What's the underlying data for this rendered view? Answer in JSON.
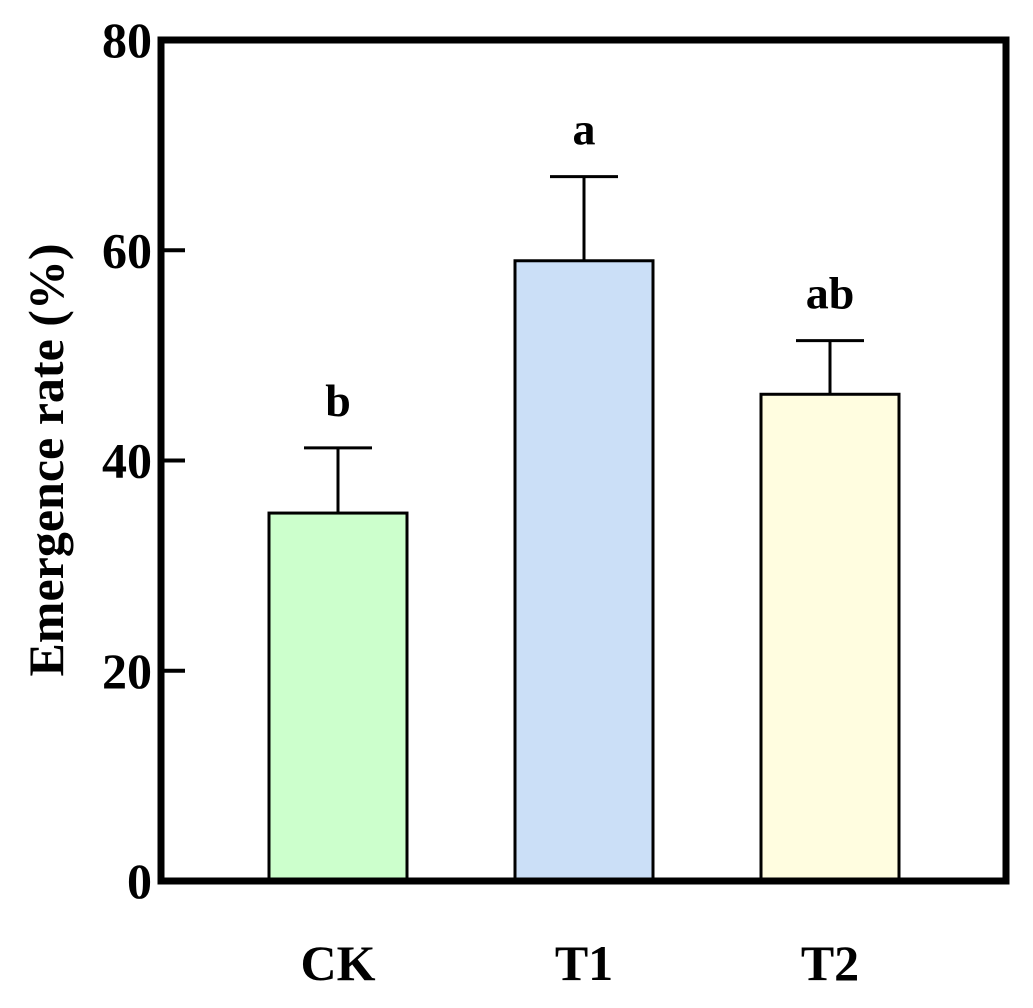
{
  "chart_data": {
    "type": "bar",
    "categories": [
      "CK",
      "T1",
      "T2"
    ],
    "values": [
      35,
      59,
      46.3
    ],
    "errors": [
      6.2,
      8,
      5.1
    ],
    "significance_letters": [
      "b",
      "a",
      "ab"
    ],
    "colors": [
      "#ccffcc",
      "#cbdff7",
      "#fffde0"
    ],
    "xlabel": "",
    "ylabel": "Emergence rate (%)",
    "ylim": [
      0,
      80
    ],
    "yticks": [
      0,
      20,
      40,
      60,
      80
    ],
    "grid": false
  }
}
